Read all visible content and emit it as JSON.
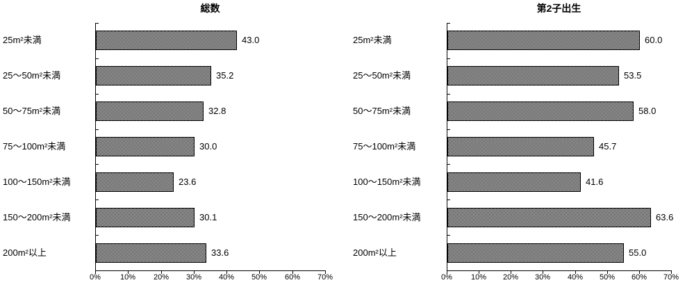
{
  "page": {
    "background_color": "#ffffff",
    "text_color": "#000000"
  },
  "chart_data": [
    {
      "type": "bar",
      "orientation": "horizontal",
      "title": "総数",
      "categories": [
        "25m²未満",
        "25〜50m²未満",
        "50〜75m²未満",
        "75〜100m²未満",
        "100〜150m²未満",
        "150〜200m²未満",
        "200m²以上"
      ],
      "values": [
        43.0,
        35.2,
        32.8,
        30.0,
        23.6,
        30.1,
        33.6
      ],
      "value_label_format": "one-decimal",
      "xlim": [
        0,
        70
      ],
      "x_tick_step": 10,
      "x_tick_labels": [
        "0%",
        "10%",
        "20%",
        "30%",
        "40%",
        "50%",
        "60%",
        "70%"
      ],
      "grid": false,
      "legend": false,
      "bar_fill": "black-white-checker-pattern",
      "bar_border_color": "#000000",
      "axis_color": "#000000"
    },
    {
      "type": "bar",
      "orientation": "horizontal",
      "title": "第2子出生",
      "categories": [
        "25m²未満",
        "25〜50m²未満",
        "50〜75m²未満",
        "75〜100m²未満",
        "100〜150m²未満",
        "150〜200m²未満",
        "200m²以上"
      ],
      "values": [
        60.0,
        53.5,
        58.0,
        45.7,
        41.6,
        63.6,
        55.0
      ],
      "value_label_format": "one-decimal",
      "xlim": [
        0,
        70
      ],
      "x_tick_step": 10,
      "x_tick_labels": [
        "0%",
        "10%",
        "20%",
        "30%",
        "40%",
        "50%",
        "60%",
        "70%"
      ],
      "grid": false,
      "legend": false,
      "bar_fill": "black-white-checker-pattern",
      "bar_border_color": "#000000",
      "axis_color": "#000000"
    }
  ]
}
